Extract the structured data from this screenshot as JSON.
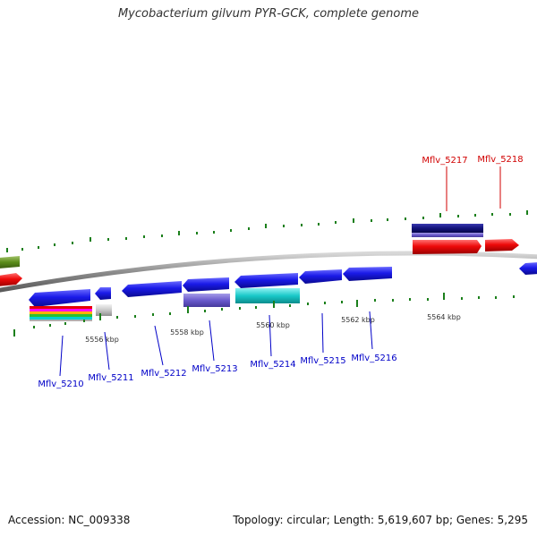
{
  "title": "Mycobacterium gilvum PYR-GCK, complete genome",
  "footer": {
    "accession": "Accession: NC_009338",
    "summary": "Topology: circular; Length: 5,619,607 bp; Genes: 5,295"
  },
  "colors": {
    "backbone": "#8c8c8c",
    "tick": "#1b7f1b",
    "forward_gene_label": "#d10000",
    "reverse_gene_label": "#0000c8",
    "cds": "#1414e6",
    "rna": "#e60000",
    "pseudo": "#c8c8c8",
    "misc_feature": "#5b8c1a"
  },
  "scale_labels": [
    "5556 kbp",
    "5558 kbp",
    "5560 kbp",
    "5562 kbp",
    "5564 kbp"
  ],
  "genes": [
    {
      "label": "Mflv_5210",
      "strand": "reverse"
    },
    {
      "label": "Mflv_5211",
      "strand": "reverse"
    },
    {
      "label": "Mflv_5212",
      "strand": "reverse"
    },
    {
      "label": "Mflv_5213",
      "strand": "reverse"
    },
    {
      "label": "Mflv_5214",
      "strand": "reverse"
    },
    {
      "label": "Mflv_5215",
      "strand": "reverse"
    },
    {
      "label": "Mflv_5216",
      "strand": "reverse"
    },
    {
      "label": "Mflv_5217",
      "strand": "forward"
    },
    {
      "label": "Mflv_5218",
      "strand": "forward"
    }
  ]
}
